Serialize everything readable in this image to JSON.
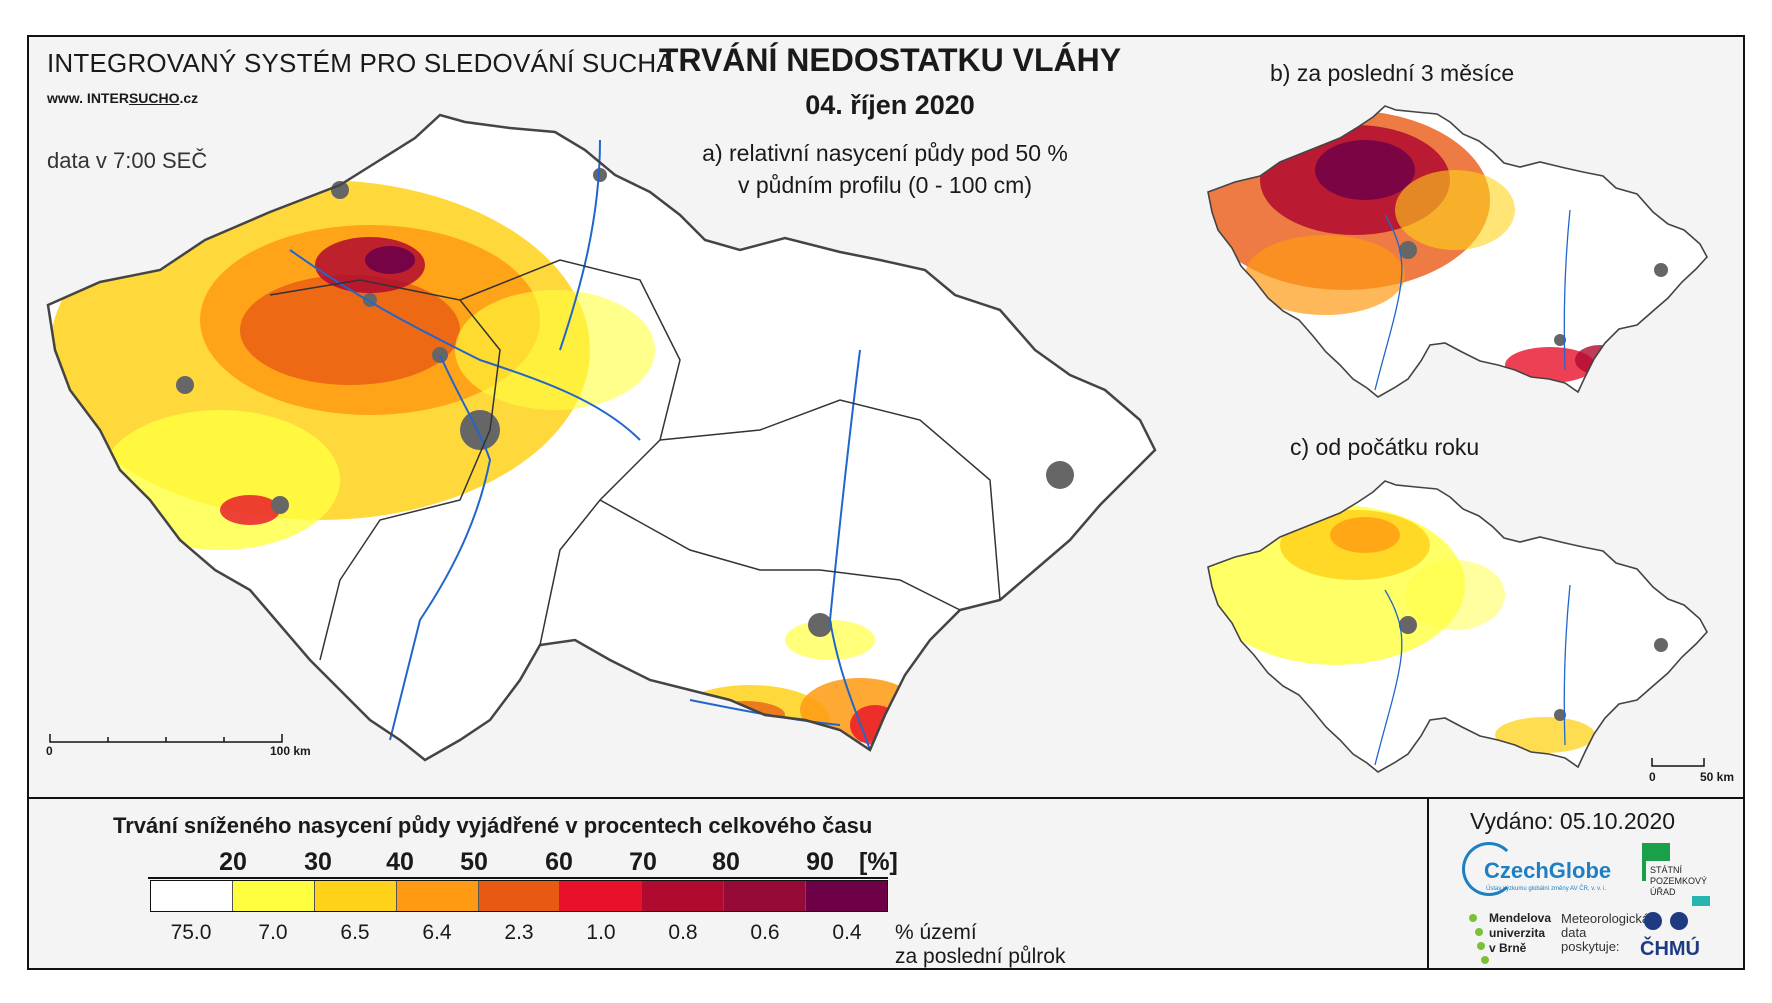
{
  "header": {
    "system_title": "INTEGROVANÝ SYSTÉM PRO SLEDOVÁNÍ SUCHA",
    "website_prefix": "www. INTER",
    "website_underlined": "SUCHO",
    "website_suffix": ".cz",
    "data_time": "data v 7:00 SEČ"
  },
  "title": {
    "main": "TRVÁNÍ NEDOSTATKU VLÁHY",
    "date": "04. říjen 2020"
  },
  "panels": {
    "a_line1": "a) relativní nasycení půdy pod 50 %",
    "a_line2": "v půdním profilu (0 - 100 cm)",
    "b": "b) za poslední 3 měsíce",
    "c": "c) od počátku roku"
  },
  "scale_main": {
    "zero": "0",
    "end": "100 km"
  },
  "scale_small": {
    "zero": "0",
    "end": "50 km"
  },
  "legend": {
    "title": "Trvání sníženého nasycení půdy vyjádřené v procentech celkového času",
    "ticks": [
      "20",
      "30",
      "40",
      "50",
      "60",
      "70",
      "80",
      "90"
    ],
    "unit": "[%]",
    "colors": [
      "#ffffff",
      "#ffff40",
      "#ffd21a",
      "#ff9a12",
      "#e85a14",
      "#e8102a",
      "#b00a30",
      "#960a38",
      "#6e0048"
    ],
    "percentages": [
      "75.0",
      "7.0",
      "6.5",
      "6.4",
      "2.3",
      "1.0",
      "0.8",
      "0.6",
      "0.4"
    ],
    "pct_note_line1": "% území",
    "pct_note_line2": "za poslední půlrok"
  },
  "footer": {
    "issued": "Vydáno: 05.10.2020",
    "czechglobe": "CzechGlobe",
    "czechglobe_sub": "Ústav výzkumu globální změny AV ČR, v. v. i.",
    "spu": [
      "STÁTNÍ",
      "POZEMKOVÝ",
      "ÚŘAD"
    ],
    "mendel": [
      "Mendelova",
      "univerzita",
      "v Brně"
    ],
    "meteo": [
      "Meteorologická",
      "data",
      "poskytuje:"
    ],
    "chmu": "ČHMÚ"
  }
}
